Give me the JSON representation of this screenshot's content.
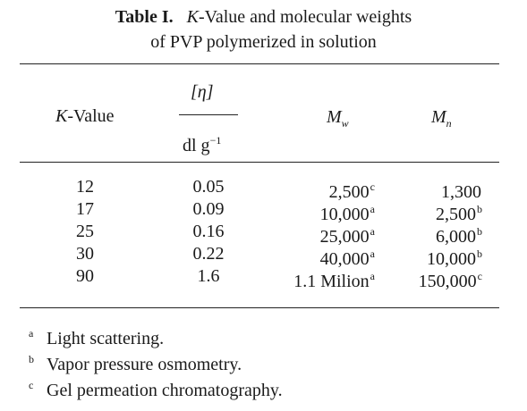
{
  "caption": {
    "label": "Table I.",
    "k_italic": "K",
    "line1_rest": "-Value and molecular weights",
    "line2": "of PVP polymerized in solution"
  },
  "headers": {
    "kvalue_italic": "K",
    "kvalue_rest": "-Value",
    "eta": "[η]",
    "dlg_base": "dl g",
    "dlg_exp": "−1",
    "mw_base": "M",
    "mw_sub": "w",
    "mn_base": "M",
    "mn_sub": "n"
  },
  "rows": [
    {
      "k": "12",
      "eta": "0.05",
      "mw": "2,500",
      "mw_note": "c",
      "mn": "1,300",
      "mn_note": ""
    },
    {
      "k": "17",
      "eta": "0.09",
      "mw": "10,000",
      "mw_note": "a",
      "mn": "2,500",
      "mn_note": "b"
    },
    {
      "k": "25",
      "eta": "0.16",
      "mw": "25,000",
      "mw_note": "a",
      "mn": "6,000",
      "mn_note": "b"
    },
    {
      "k": "30",
      "eta": "0.22",
      "mw": "40,000",
      "mw_note": "a",
      "mn": "10,000",
      "mn_note": "b"
    },
    {
      "k": "90",
      "eta": "1.6",
      "mw": "1.1 Milion",
      "mw_note": "a",
      "mn": "150,000",
      "mn_note": "c"
    }
  ],
  "footnotes": [
    {
      "mark": "a",
      "text": "Light scattering."
    },
    {
      "mark": "b",
      "text": "Vapor pressure osmometry."
    },
    {
      "mark": "c",
      "text": "Gel permeation chromatography."
    }
  ]
}
